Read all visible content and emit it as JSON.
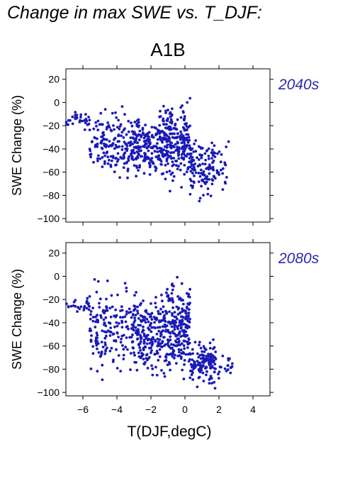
{
  "title": "Change in max SWE vs. T_DJF:",
  "scenario": "A1B",
  "colors": {
    "points": "#1a1ab8",
    "panel_label": "#2a2aaa",
    "axis": "#000000"
  },
  "chart_data": [
    {
      "type": "scatter",
      "panel_label": "2040s",
      "ylabel": "SWE Change (%)",
      "xlim": [
        -7,
        5
      ],
      "ylim": [
        -103,
        29
      ],
      "xticks": [
        -6,
        -4,
        -2,
        0,
        2,
        4
      ],
      "yticks": [
        20,
        0,
        -20,
        -40,
        -60,
        -80,
        -100
      ],
      "show_xticklabels": false,
      "grid": false,
      "point_clusters": [
        {
          "x_range": [
            -7,
            -5.6
          ],
          "y_range": [
            -30,
            -2
          ],
          "count": 30
        },
        {
          "x_range": [
            -5.6,
            -3.2
          ],
          "y_range": [
            -75,
            2
          ],
          "count": 150
        },
        {
          "x_range": [
            -3.2,
            -1.5
          ],
          "y_range": [
            -70,
            -5
          ],
          "count": 180
        },
        {
          "x_range": [
            -1.5,
            0.3
          ],
          "y_range": [
            -80,
            10
          ],
          "count": 260
        },
        {
          "x_range": [
            0.3,
            1.8
          ],
          "y_range": [
            -90,
            -20
          ],
          "count": 120
        },
        {
          "x_range": [
            1.8,
            2.8
          ],
          "y_range": [
            -85,
            -25
          ],
          "count": 20
        }
      ]
    },
    {
      "type": "scatter",
      "panel_label": "2080s",
      "ylabel": "SWE Change (%)",
      "xlabel": "T(DJF,degC)",
      "xlim": [
        -7,
        5
      ],
      "ylim": [
        -103,
        29
      ],
      "xticks": [
        -6,
        -4,
        -2,
        0,
        2,
        4
      ],
      "yticks": [
        20,
        0,
        -20,
        -40,
        -60,
        -80,
        -100
      ],
      "show_xticklabels": true,
      "grid": false,
      "point_clusters": [
        {
          "x_range": [
            -7,
            -5.6
          ],
          "y_range": [
            -35,
            -15
          ],
          "count": 25
        },
        {
          "x_range": [
            -5.6,
            -3.2
          ],
          "y_range": [
            -95,
            5
          ],
          "count": 150
        },
        {
          "x_range": [
            -3.2,
            -1.5
          ],
          "y_range": [
            -95,
            -10
          ],
          "count": 190
        },
        {
          "x_range": [
            -1.5,
            0.3
          ],
          "y_range": [
            -100,
            10
          ],
          "count": 270
        },
        {
          "x_range": [
            0.3,
            1.8
          ],
          "y_range": [
            -100,
            -50
          ],
          "count": 130
        },
        {
          "x_range": [
            1.8,
            2.8
          ],
          "y_range": [
            -95,
            -65
          ],
          "count": 20
        }
      ]
    }
  ]
}
